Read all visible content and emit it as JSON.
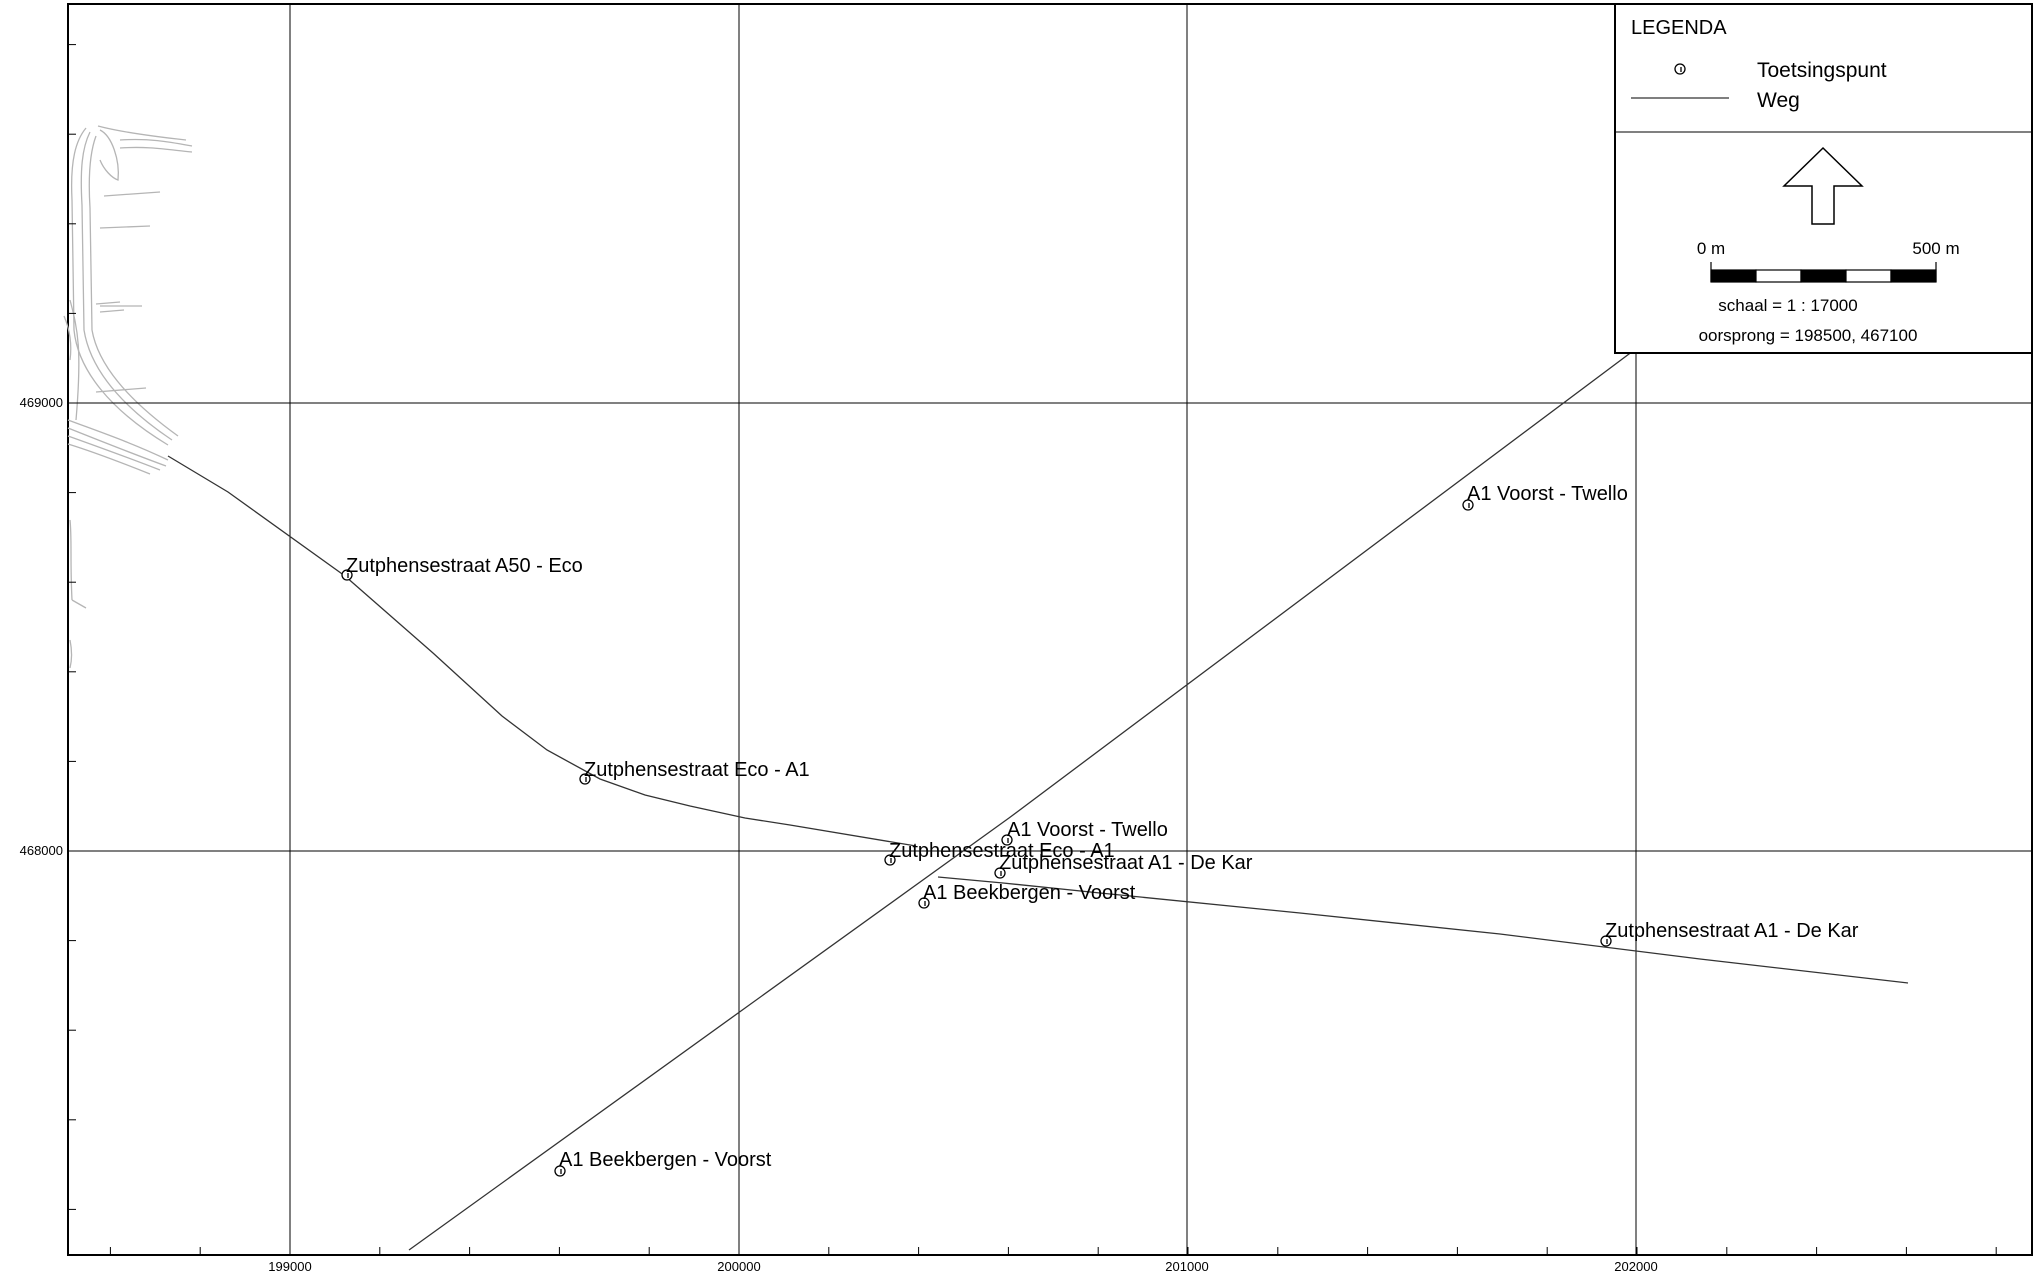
{
  "map": {
    "x_ticks": [
      "199000",
      "200000",
      "201000",
      "202000"
    ],
    "y_ticks": [
      "469000",
      "468000"
    ],
    "labels": [
      {
        "text": "Zutphensestraat A50 - Eco"
      },
      {
        "text": "Zutphensestraat Eco - A1"
      },
      {
        "text": "Zutphensestraat Eco - A1"
      },
      {
        "text": "A1 Voorst - Twello"
      },
      {
        "text": "A1 Voorst - Twello"
      },
      {
        "text": "Zutphensestraat A1 - De Kar"
      },
      {
        "text": "Zutphensestraat A1 - De Kar"
      },
      {
        "text": "A1 Beekbergen - Voorst"
      },
      {
        "text": "A1 Beekbergen - Voorst"
      }
    ]
  },
  "legend": {
    "title": "LEGENDA",
    "point_label": "Toetsingspunt",
    "road_label": "Weg",
    "north_arrow": "north-arrow-icon",
    "scale_start": "0 m",
    "scale_end": "500 m",
    "scale_text": "schaal = 1 : 17000",
    "origin_text": "oorsprong = 198500, 467100"
  },
  "colors": {
    "frame": "#000000",
    "grid": "#000000",
    "road": "#333333",
    "background_roads": "#b5b5b5"
  }
}
